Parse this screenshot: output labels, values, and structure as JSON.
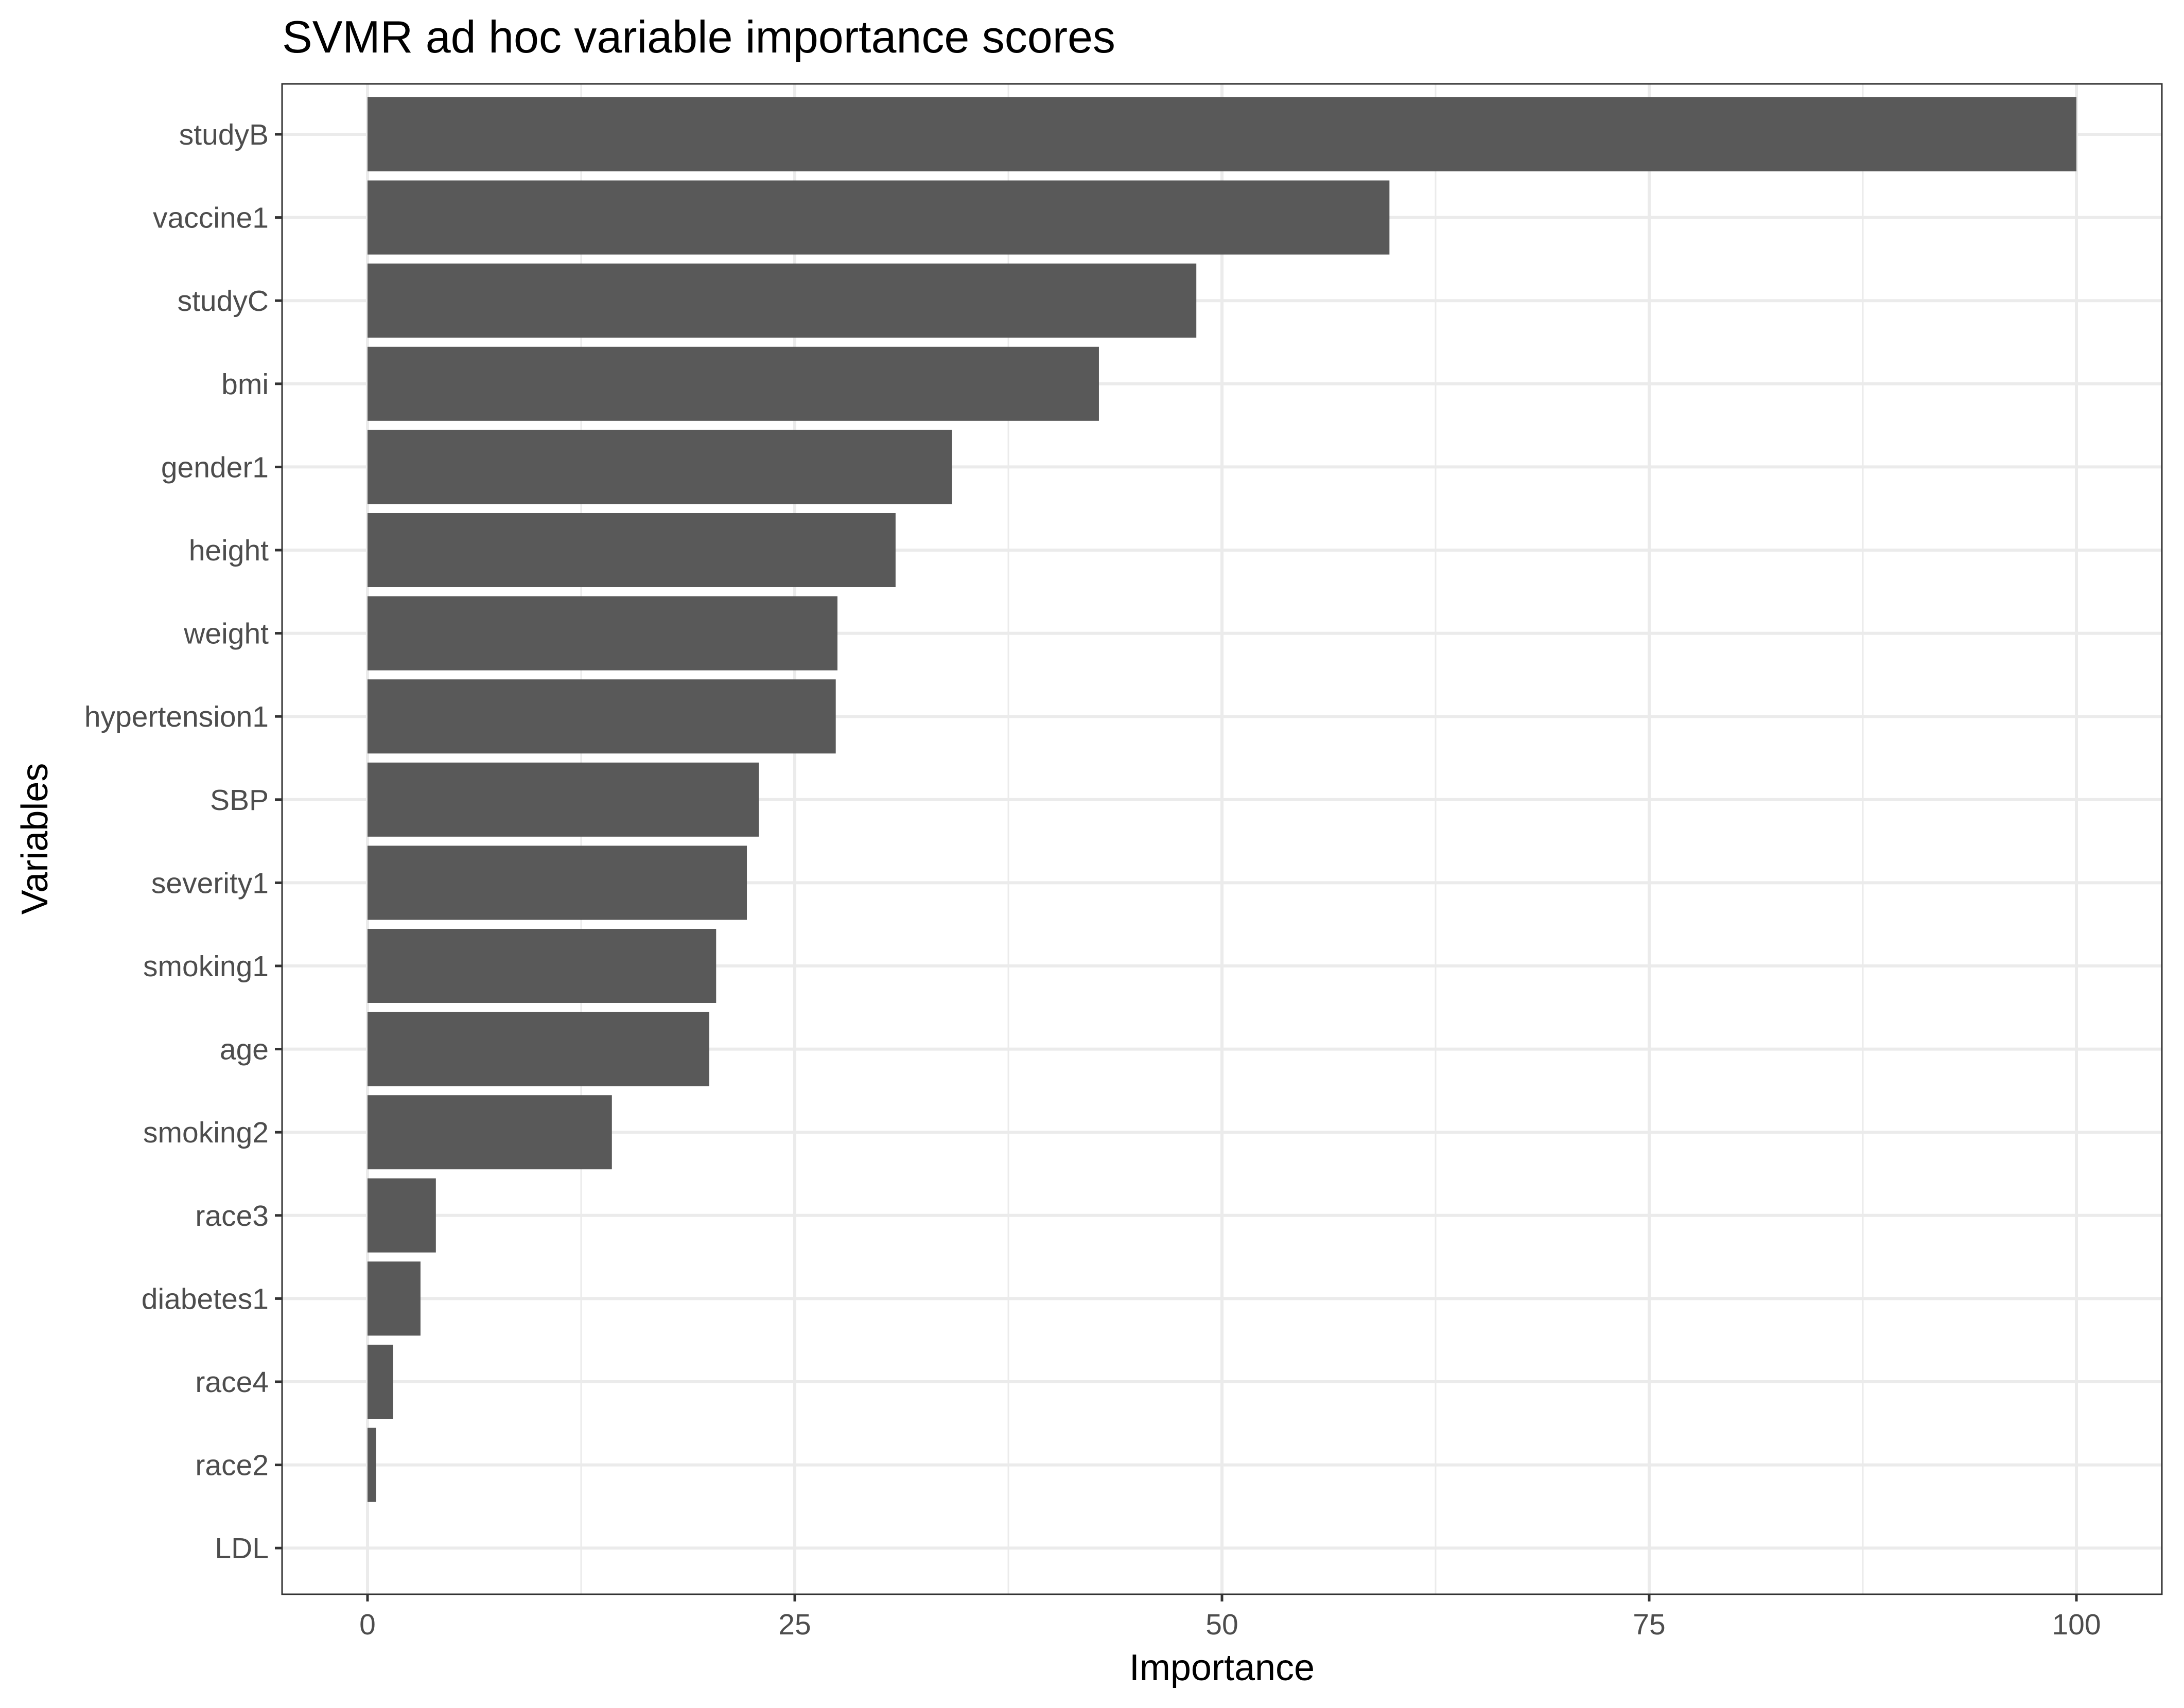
{
  "chart_data": {
    "type": "bar",
    "orientation": "horizontal",
    "title": "SVMR ad hoc variable importance scores",
    "xlabel": "Importance",
    "ylabel": "Variables",
    "xlim": [
      -5,
      105
    ],
    "xticks": [
      0,
      25,
      50,
      75,
      100
    ],
    "xtick_labels": [
      "0",
      "25",
      "50",
      "75",
      "100"
    ],
    "grid": true,
    "bar_color": "#595959",
    "categories": [
      "studyB",
      "vaccine1",
      "studyC",
      "bmi",
      "gender1",
      "height",
      "weight",
      "hypertension1",
      "SBP",
      "severity1",
      "smoking1",
      "age",
      "smoking2",
      "race3",
      "diabetes1",
      "race4",
      "race2",
      "LDL"
    ],
    "values": [
      100,
      59.8,
      48.5,
      42.8,
      34.2,
      30.9,
      27.5,
      27.4,
      22.9,
      22.2,
      20.4,
      20.0,
      14.3,
      4.0,
      3.1,
      1.5,
      0.5,
      0
    ]
  }
}
